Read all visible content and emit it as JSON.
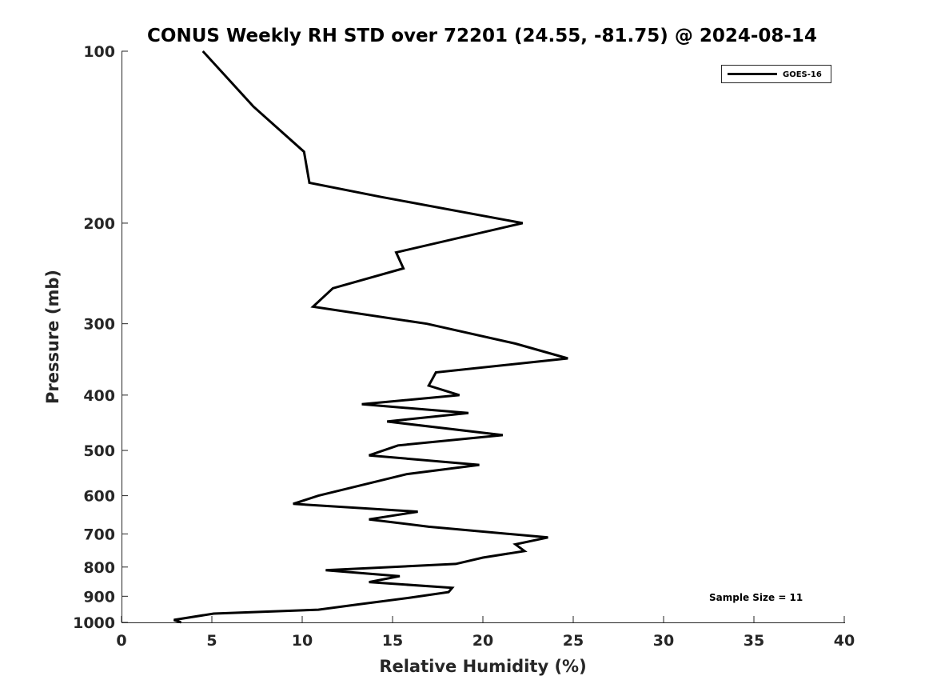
{
  "chart_data": {
    "type": "line",
    "title": "CONUS Weekly RH STD over 72201 (24.55, -81.75) @ 2024-08-14",
    "xlabel": "Relative Humidity (%)",
    "ylabel": "Pressure (mb)",
    "xlim": [
      0,
      40
    ],
    "ylim": [
      100,
      1000
    ],
    "yscale": "log",
    "y_reversed": true,
    "xticks": [
      0,
      5,
      10,
      15,
      20,
      25,
      30,
      35,
      40
    ],
    "yticks": [
      100,
      200,
      300,
      400,
      500,
      600,
      700,
      800,
      900,
      1000
    ],
    "grid": false,
    "legend": {
      "placement": "top-right",
      "entries": [
        "GOES-16"
      ]
    },
    "annotation": "Sample Size = 11",
    "series": [
      {
        "name": "GOES-16",
        "color": "#000000",
        "x": [
          4.5,
          7.3,
          10.1,
          10.4,
          14.4,
          22.2,
          15.2,
          15.6,
          11.7,
          10.6,
          16.9,
          21.8,
          24.7,
          17.4,
          17.2,
          17.0,
          18.7,
          13.3,
          19.2,
          14.7,
          21.1,
          15.3,
          13.7,
          19.8,
          15.8,
          10.9,
          9.5,
          16.4,
          13.7,
          17.0,
          23.6,
          21.8,
          22.3,
          20.0,
          18.5,
          11.3,
          15.4,
          13.7,
          18.3,
          18.1,
          16.0,
          13.1,
          10.9,
          5.1,
          2.9,
          3.3
        ],
        "y": [
          100,
          125,
          150,
          170,
          180,
          200,
          225,
          240,
          260,
          280,
          300,
          325,
          345,
          365,
          375,
          385,
          400,
          415,
          430,
          445,
          470,
          490,
          510,
          530,
          550,
          600,
          620,
          640,
          660,
          680,
          710,
          730,
          750,
          770,
          790,
          810,
          830,
          850,
          870,
          885,
          905,
          930,
          950,
          965,
          990,
          1000
        ]
      }
    ]
  },
  "legend": {
    "label": "GOES-16"
  },
  "annotation": {
    "text": "Sample Size = 11"
  }
}
